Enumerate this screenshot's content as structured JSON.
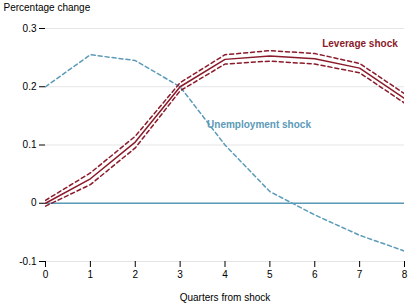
{
  "chart_data": {
    "type": "line",
    "x": [
      0,
      1,
      2,
      3,
      4,
      5,
      6,
      7,
      8
    ],
    "series": [
      {
        "color": "#5b9ab8",
        "line_style": "dashed",
        "values": [
          0.2,
          0.255,
          0.245,
          0.2,
          0.1,
          0.02,
          -0.02,
          -0.055,
          -0.082
        ]
      },
      {
        "color": "#5b9ab8",
        "line_style": "solid",
        "values": [
          0.0,
          0.0,
          0.0,
          0.0,
          0.0,
          0.0,
          0.0,
          0.0,
          0.0
        ]
      },
      {
        "color": "#8b1a2a",
        "line_style": "dashed",
        "values": [
          0.005,
          0.052,
          0.115,
          0.207,
          0.255,
          0.262,
          0.257,
          0.24,
          0.188
        ]
      },
      {
        "color": "#8b1a2a",
        "line_style": "dashed",
        "values": [
          -0.005,
          0.032,
          0.095,
          0.193,
          0.239,
          0.244,
          0.239,
          0.224,
          0.172
        ]
      },
      {
        "color": "#8b1a2a",
        "line_style": "solid",
        "values": [
          0.0,
          0.042,
          0.105,
          0.2,
          0.247,
          0.253,
          0.248,
          0.232,
          0.18
        ]
      }
    ],
    "x_label": "Quarters from shock",
    "y_label": "Percentage change",
    "xlim": [
      0,
      8
    ],
    "xticks": [
      0,
      1,
      2,
      3,
      4,
      5,
      6,
      7,
      8
    ],
    "ylim": [
      -0.1,
      0.3
    ],
    "yticks": [
      -0.1,
      0,
      0.1,
      0.2,
      0.3
    ],
    "grid": true,
    "annotations": [
      {
        "text": "Leverage shock",
        "x": 7.85,
        "y": 0.268,
        "color": "#8b1a2a"
      },
      {
        "text": "Unemployment shock",
        "x": 3.6,
        "y": 0.135,
        "color": "#5b9ab8"
      }
    ]
  }
}
